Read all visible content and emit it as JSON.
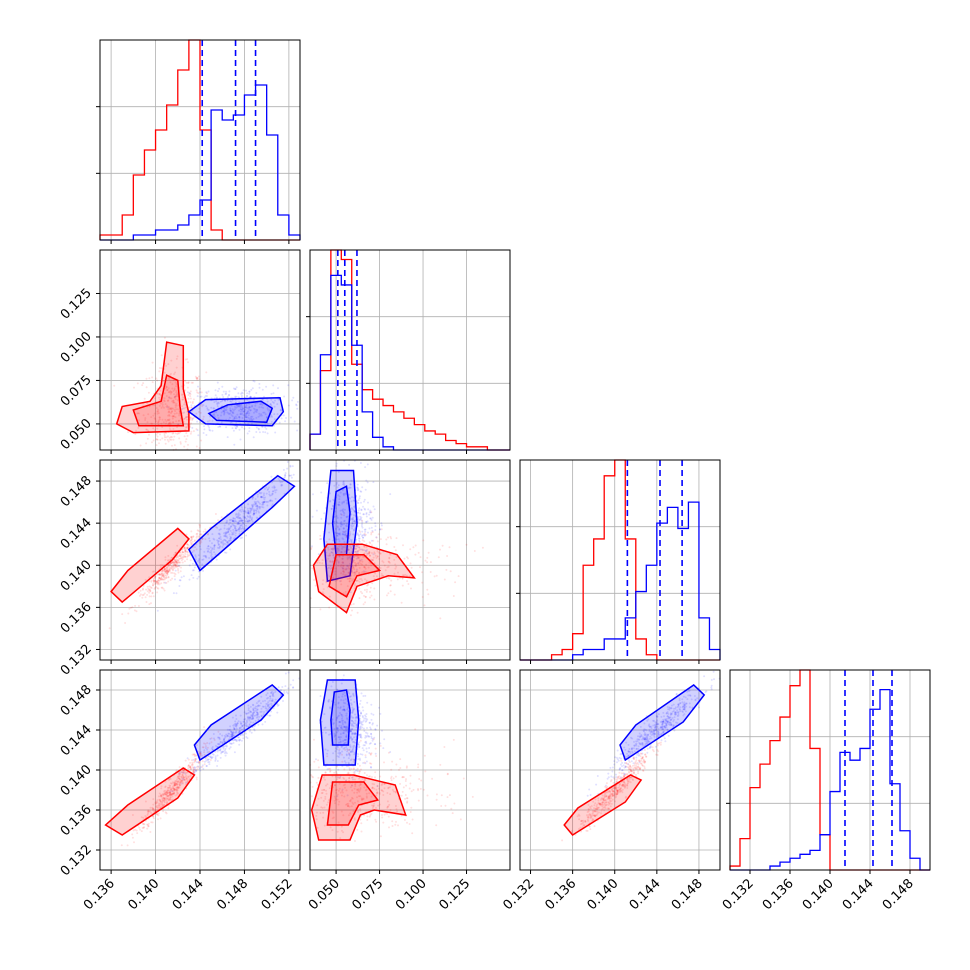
{
  "chart_data": {
    "type": "scatter",
    "title": "",
    "grid": true,
    "colors": {
      "red": "#ff0000",
      "blue": "#0000ff"
    },
    "parameters": [
      {
        "ticks": [
          0.136,
          0.14,
          0.144,
          0.148,
          0.152
        ],
        "tick_labels": [
          "0.136",
          "0.140",
          "0.144",
          "0.148",
          "0.152"
        ],
        "range": [
          0.135,
          0.153
        ]
      },
      {
        "ticks": [
          0.05,
          0.075,
          0.1,
          0.125
        ],
        "tick_labels": [
          "0.050",
          "0.075",
          "0.100",
          "0.125"
        ],
        "range": [
          0.035,
          0.15
        ]
      },
      {
        "ticks": [
          0.132,
          0.136,
          0.14,
          0.144,
          0.148
        ],
        "tick_labels": [
          "0.132",
          "0.136",
          "0.140",
          "0.144",
          "0.148"
        ],
        "range": [
          0.131,
          0.15
        ]
      },
      {
        "ticks": [
          0.132,
          0.136,
          0.14,
          0.144,
          0.148
        ],
        "tick_labels": [
          "0.132",
          "0.136",
          "0.140",
          "0.144",
          "0.148"
        ],
        "range": [
          0.13,
          0.15
        ]
      }
    ],
    "series": [
      {
        "color": "red",
        "means": [
          0.1415,
          0.057,
          0.14,
          0.138
        ],
        "sds": [
          0.0015,
          0.013,
          0.0017,
          0.002
        ]
      },
      {
        "color": "blue",
        "means": [
          0.1475,
          0.058,
          0.144,
          0.144
        ],
        "sds": [
          0.0022,
          0.007,
          0.0023,
          0.0022
        ]
      }
    ],
    "histograms": [
      {
        "edges": [
          0.135,
          0.136,
          0.137,
          0.138,
          0.139,
          0.14,
          0.141,
          0.142,
          0.143,
          0.144,
          0.145,
          0.146,
          0.147,
          0.148,
          0.149,
          0.15,
          0.151,
          0.152,
          0.153
        ],
        "red": [
          1,
          1,
          5,
          13,
          18,
          22,
          27,
          34,
          40,
          22,
          2,
          0,
          0,
          0,
          0,
          0,
          0,
          0
        ],
        "blue": [
          0,
          0,
          0,
          1,
          1,
          2,
          2,
          3,
          5,
          8,
          26,
          24,
          25,
          29,
          31,
          21,
          5,
          1
        ]
      },
      {
        "edges": [
          0.035,
          0.041,
          0.047,
          0.053,
          0.059,
          0.065,
          0.071,
          0.077,
          0.083,
          0.089,
          0.095,
          0.101,
          0.107,
          0.113,
          0.119,
          0.125,
          0.131,
          0.137,
          0.143,
          0.15
        ],
        "red": [
          5,
          25,
          63,
          60,
          27,
          19,
          16,
          14,
          12,
          10,
          8,
          6,
          5,
          3,
          2,
          1,
          1,
          0,
          0
        ],
        "blue": [
          5,
          30,
          55,
          52,
          33,
          12,
          4,
          1,
          0,
          0,
          0,
          0,
          0,
          0,
          0,
          0,
          0,
          0,
          0
        ]
      },
      {
        "edges": [
          0.131,
          0.132,
          0.133,
          0.134,
          0.135,
          0.136,
          0.137,
          0.138,
          0.139,
          0.14,
          0.141,
          0.142,
          0.143,
          0.144,
          0.145,
          0.146,
          0.147,
          0.148,
          0.149,
          0.15
        ],
        "red": [
          0,
          0,
          0,
          1,
          2,
          5,
          18,
          23,
          35,
          38,
          23,
          4,
          1,
          0,
          0,
          0,
          0,
          0,
          0
        ],
        "blue": [
          0,
          0,
          0,
          0,
          0,
          1,
          2,
          2,
          4,
          4,
          8,
          13,
          18,
          26,
          29,
          25,
          30,
          8,
          2
        ]
      },
      {
        "edges": [
          0.13,
          0.131,
          0.132,
          0.133,
          0.134,
          0.135,
          0.136,
          0.137,
          0.138,
          0.139,
          0.14,
          0.141,
          0.142,
          0.143,
          0.144,
          0.145,
          0.146,
          0.147,
          0.148,
          0.149,
          0.15
        ],
        "red": [
          1,
          8,
          21,
          27,
          33,
          39,
          47,
          51,
          31,
          9,
          0,
          0,
          0,
          0,
          0,
          0,
          0,
          0,
          0,
          0
        ],
        "blue": [
          0,
          0,
          0,
          0,
          1,
          2,
          3,
          4,
          5,
          9,
          20,
          30,
          28,
          31,
          41,
          46,
          22,
          10,
          3,
          0
        ]
      }
    ],
    "quantiles": [
      [
        0.1442,
        0.1472,
        0.149
      ],
      [
        0.051,
        0.055,
        0.062
      ],
      [
        0.1412,
        0.1443,
        0.1464
      ],
      [
        0.1415,
        0.1443,
        0.1462
      ]
    ],
    "contours": [
      {
        "row": 1,
        "col": 0,
        "points": [
          [
            0.1395,
            0.058
          ]
        ],
        "blobs": [
          {
            "color": "red",
            "pts": [
              [
                0.138,
                0.045
              ],
              [
                0.143,
                0.046
              ],
              [
                0.143,
                0.056
              ],
              [
                0.1425,
                0.07
              ],
              [
                0.1425,
                0.095
              ],
              [
                0.141,
                0.097
              ],
              [
                0.1405,
                0.072
              ],
              [
                0.1395,
                0.063
              ],
              [
                0.137,
                0.06
              ],
              [
                0.1365,
                0.05
              ]
            ]
          },
          {
            "color": "red",
            "pts": [
              [
                0.1385,
                0.049
              ],
              [
                0.1425,
                0.049
              ],
              [
                0.1422,
                0.06
              ],
              [
                0.142,
                0.075
              ],
              [
                0.141,
                0.078
              ],
              [
                0.1405,
                0.063
              ],
              [
                0.138,
                0.058
              ]
            ]
          },
          {
            "color": "blue",
            "pts": [
              [
                0.1445,
                0.05
              ],
              [
                0.1505,
                0.049
              ],
              [
                0.1515,
                0.057
              ],
              [
                0.1512,
                0.065
              ],
              [
                0.1445,
                0.064
              ],
              [
                0.143,
                0.057
              ]
            ]
          },
          {
            "color": "blue",
            "pts": [
              [
                0.1455,
                0.052
              ],
              [
                0.15,
                0.051
              ],
              [
                0.1505,
                0.059
              ],
              [
                0.1495,
                0.063
              ],
              [
                0.1465,
                0.061
              ],
              [
                0.1448,
                0.056
              ]
            ]
          }
        ]
      },
      {
        "row": 2,
        "col": 0,
        "blobs": [
          {
            "color": "red",
            "pts": [
              [
                0.137,
                0.1365
              ],
              [
                0.1415,
                0.1405
              ],
              [
                0.143,
                0.1425
              ],
              [
                0.142,
                0.1435
              ],
              [
                0.1375,
                0.1395
              ],
              [
                0.136,
                0.1375
              ]
            ]
          },
          {
            "color": "blue",
            "pts": [
              [
                0.144,
                0.1395
              ],
              [
                0.1505,
                0.1455
              ],
              [
                0.1525,
                0.1475
              ],
              [
                0.151,
                0.1485
              ],
              [
                0.145,
                0.1435
              ],
              [
                0.143,
                0.1415
              ]
            ]
          }
        ]
      },
      {
        "row": 2,
        "col": 1,
        "blobs": [
          {
            "color": "blue",
            "pts": [
              [
                0.045,
                0.1385
              ],
              [
                0.058,
                0.139
              ],
              [
                0.062,
                0.144
              ],
              [
                0.06,
                0.149
              ],
              [
                0.047,
                0.149
              ],
              [
                0.043,
                0.1425
              ]
            ]
          },
          {
            "color": "blue",
            "pts": [
              [
                0.05,
                0.141
              ],
              [
                0.056,
                0.141
              ],
              [
                0.058,
                0.145
              ],
              [
                0.056,
                0.1475
              ],
              [
                0.05,
                0.147
              ],
              [
                0.048,
                0.144
              ]
            ]
          },
          {
            "color": "red",
            "pts": [
              [
                0.04,
                0.1375
              ],
              [
                0.056,
                0.1355
              ],
              [
                0.062,
                0.138
              ],
              [
                0.08,
                0.139
              ],
              [
                0.095,
                0.1388
              ],
              [
                0.085,
                0.141
              ],
              [
                0.065,
                0.142
              ],
              [
                0.045,
                0.142
              ],
              [
                0.037,
                0.14
              ]
            ]
          },
          {
            "color": "red",
            "pts": [
              [
                0.046,
                0.138
              ],
              [
                0.056,
                0.137
              ],
              [
                0.062,
                0.139
              ],
              [
                0.075,
                0.1395
              ],
              [
                0.066,
                0.141
              ],
              [
                0.05,
                0.141
              ]
            ]
          }
        ]
      },
      {
        "row": 3,
        "col": 0,
        "blobs": [
          {
            "color": "red",
            "pts": [
              [
                0.137,
                0.1335
              ],
              [
                0.142,
                0.1372
              ],
              [
                0.1435,
                0.1395
              ],
              [
                0.1425,
                0.1402
              ],
              [
                0.1375,
                0.1365
              ],
              [
                0.1355,
                0.1345
              ]
            ]
          },
          {
            "color": "blue",
            "pts": [
              [
                0.144,
                0.141
              ],
              [
                0.1495,
                0.145
              ],
              [
                0.1515,
                0.1475
              ],
              [
                0.1505,
                0.1485
              ],
              [
                0.145,
                0.1445
              ],
              [
                0.1435,
                0.1425
              ]
            ]
          }
        ]
      },
      {
        "row": 3,
        "col": 1,
        "blobs": [
          {
            "color": "blue",
            "pts": [
              [
                0.043,
                0.1405
              ],
              [
                0.061,
                0.1405
              ],
              [
                0.063,
                0.145
              ],
              [
                0.061,
                0.149
              ],
              [
                0.045,
                0.149
              ],
              [
                0.041,
                0.145
              ]
            ]
          },
          {
            "color": "blue",
            "pts": [
              [
                0.048,
                0.1425
              ],
              [
                0.057,
                0.1425
              ],
              [
                0.058,
                0.146
              ],
              [
                0.056,
                0.148
              ],
              [
                0.049,
                0.1478
              ],
              [
                0.047,
                0.145
              ]
            ]
          },
          {
            "color": "red",
            "pts": [
              [
                0.04,
                0.133
              ],
              [
                0.058,
                0.133
              ],
              [
                0.064,
                0.1355
              ],
              [
                0.072,
                0.136
              ],
              [
                0.09,
                0.1355
              ],
              [
                0.084,
                0.1385
              ],
              [
                0.06,
                0.1395
              ],
              [
                0.042,
                0.1395
              ],
              [
                0.036,
                0.136
              ]
            ]
          },
          {
            "color": "red",
            "pts": [
              [
                0.045,
                0.1345
              ],
              [
                0.057,
                0.1345
              ],
              [
                0.063,
                0.1365
              ],
              [
                0.074,
                0.137
              ],
              [
                0.066,
                0.1388
              ],
              [
                0.048,
                0.1388
              ]
            ]
          }
        ]
      },
      {
        "row": 3,
        "col": 2,
        "blobs": [
          {
            "color": "red",
            "pts": [
              [
                0.136,
                0.1335
              ],
              [
                0.141,
                0.1368
              ],
              [
                0.1425,
                0.139
              ],
              [
                0.1415,
                0.1395
              ],
              [
                0.1365,
                0.1362
              ],
              [
                0.1352,
                0.1345
              ]
            ]
          },
          {
            "color": "blue",
            "pts": [
              [
                0.141,
                0.141
              ],
              [
                0.1465,
                0.1448
              ],
              [
                0.1485,
                0.1475
              ],
              [
                0.1475,
                0.1485
              ],
              [
                0.142,
                0.1445
              ],
              [
                0.1405,
                0.1425
              ]
            ]
          }
        ]
      }
    ]
  }
}
